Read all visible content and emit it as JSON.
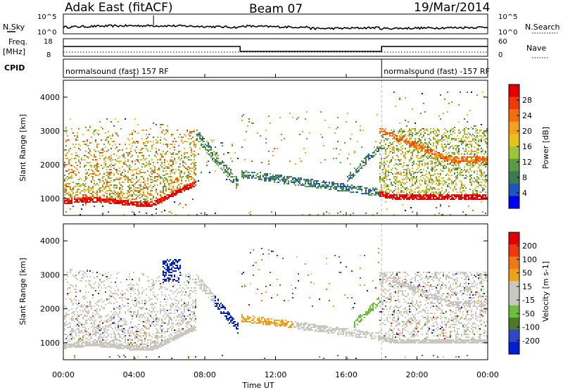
{
  "header": {
    "title": "Adak East (fitACF)",
    "beam": "Beam 07",
    "date": "19/Mar/2014"
  },
  "labels": {
    "nsky": "N.Sky",
    "nsearch": "N.Search",
    "freq": "Freq.",
    "mhz": "[MHz]",
    "nave": "Nave",
    "cpid": "CPID"
  },
  "strip_ticks": {
    "nsky_top": "10^5",
    "nsky_bottom": "10^0",
    "freq_top": "18",
    "freq_bottom": "8",
    "nave_top": "60",
    "nave_bottom": "0"
  },
  "cpid_segments": [
    {
      "text": "normalsound (fast) 157 RF",
      "start": 0
    },
    {
      "text": "normalsound (fast) -157 RF",
      "start": 18
    }
  ],
  "colors": {
    "power": [
      "#0000ee",
      "#2255bb",
      "#3a7a55",
      "#5a9a4a",
      "#9bc63a",
      "#e8c21a",
      "#f4a020",
      "#f07010",
      "#ee3a0a",
      "#e40000"
    ],
    "velocity": [
      "#0020d0",
      "#2f48c8",
      "#4a7a2a",
      "#6ac03a",
      "#c8c8c0",
      "#c8c8c0",
      "#f0a020",
      "#f07818",
      "#ee3810",
      "#e00000"
    ]
  },
  "chart_data": [
    {
      "type": "heatmap",
      "name": "power",
      "x": [
        "00:00",
        "04:00",
        "08:00",
        "12:00",
        "16:00",
        "20:00",
        "00:00"
      ],
      "xlabel": "Time UT",
      "ylabel": "Slant Range [km]",
      "yticks": [
        "1000",
        "2000",
        "3000",
        "4000"
      ],
      "ylim": [
        500,
        4500
      ],
      "colorbar_label": "Power [dB]",
      "colorbar_ticks": [
        "4",
        "8",
        "12",
        "16",
        "20",
        "24",
        "28"
      ],
      "clim": [
        0,
        30
      ]
    },
    {
      "type": "heatmap",
      "name": "velocity",
      "x": [
        "00:00",
        "04:00",
        "08:00",
        "12:00",
        "16:00",
        "20:00",
        "00:00"
      ],
      "xlabel": "Time UT",
      "ylabel": "Slant Range [km]",
      "yticks": [
        "1000",
        "2000",
        "3000",
        "4000"
      ],
      "ylim": [
        500,
        4500
      ],
      "colorbar_label": "Velocity [m s-1]",
      "colorbar_ticks": [
        "200",
        "100",
        "50",
        "15",
        "-15",
        "-50",
        "-100",
        "-200"
      ]
    }
  ],
  "x_axis": {
    "ticks": [
      "00:00",
      "04:00",
      "08:00",
      "12:00",
      "16:00",
      "20:00",
      "00:00"
    ],
    "label": "Time UT"
  }
}
